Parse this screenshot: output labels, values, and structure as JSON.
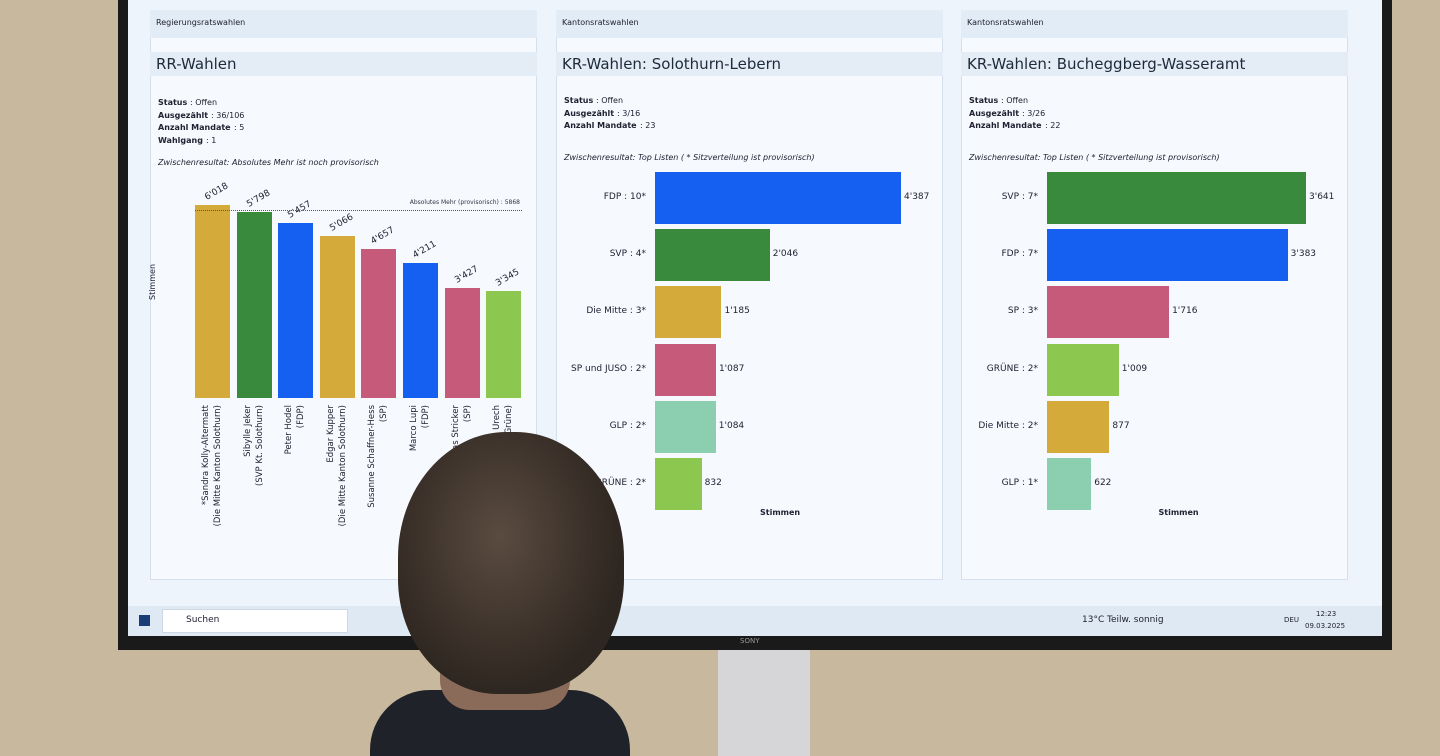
{
  "chart_data": [
    {
      "type": "bar",
      "panel": "Regierungsratswahlen",
      "title": "RR-Wahlen",
      "info": [
        {
          "label": "Status",
          "value": ": Offen"
        },
        {
          "label": "Ausgezählt",
          "value": ": 36/106"
        },
        {
          "label": "Anzahl Mandate",
          "value": ": 5"
        },
        {
          "label": "Wahlgang",
          "value": ": 1"
        }
      ],
      "subtitle": "Zwischenresultat: Absolutes Mehr ist noch provisorisch",
      "ylabel": "Stimmen",
      "categories": [
        "*Sandra Kolly-Altermatt\n(Die Mitte Kanton Solothurn)",
        "Sibylle Jeker\n(SVP Kt. Solothurn)",
        "Peter Hodel\n(FDP)",
        "Edgar Kupper\n(Die Mitte Kanton Solothurn)",
        "Susanne Schaffner-Hess\n(SP)",
        "Marco Lupi\n(FDP)",
        "Mathias Stricker\n(SP)",
        "Daniel Urech\n(Grüne)"
      ],
      "values": [
        6018,
        5798,
        5457,
        5066,
        4657,
        4211,
        3427,
        3345
      ],
      "value_labels": [
        "6'018",
        "5'798",
        "5'457",
        "5'066",
        "4'657",
        "4'211",
        "3'427",
        "3'345"
      ],
      "colors": [
        "#d4aa3a",
        "#3a8a3e",
        "#1560f0",
        "#d4aa3a",
        "#c65a7a",
        "#1560f0",
        "#c65a7a",
        "#8cc850"
      ],
      "threshold": {
        "label": "Absolutes Mehr (provisorisch) : 5868",
        "value": 5868
      }
    },
    {
      "type": "hbar",
      "panel": "Kantonsratswahlen",
      "title": "KR-Wahlen: Solothurn-Lebern",
      "info": [
        {
          "label": "Status",
          "value": ": Offen"
        },
        {
          "label": "Ausgezählt",
          "value": ": 3/16"
        },
        {
          "label": "Anzahl Mandate",
          "value": ": 23"
        }
      ],
      "subtitle": "Zwischenresultat: Top Listen ( * Sitzverteilung ist provisorisch)",
      "xlabel": "Stimmen",
      "categories": [
        "FDP : 10*",
        "SVP : 4*",
        "Die Mitte : 3*",
        "SP und JUSO : 2*",
        "GLP : 2*",
        "GRÜNE : 2*"
      ],
      "values": [
        4387,
        2046,
        1185,
        1087,
        1084,
        832
      ],
      "value_labels": [
        "4'387",
        "2'046",
        "1'185",
        "1'087",
        "1'084",
        "832"
      ],
      "colors": [
        "#1560f0",
        "#3a8a3e",
        "#d4aa3a",
        "#c65a7a",
        "#8ccfb0",
        "#8cc850"
      ]
    },
    {
      "type": "hbar",
      "panel": "Kantonsratswahlen",
      "title": "KR-Wahlen: Bucheggberg-Wasseramt",
      "info": [
        {
          "label": "Status",
          "value": ": Offen"
        },
        {
          "label": "Ausgezählt",
          "value": ": 3/26"
        },
        {
          "label": "Anzahl Mandate",
          "value": ": 22"
        }
      ],
      "subtitle": "Zwischenresultat: Top Listen ( * Sitzverteilung ist provisorisch)",
      "xlabel": "Stimmen",
      "categories": [
        "SVP : 7*",
        "FDP : 7*",
        "SP : 3*",
        "GRÜNE : 2*",
        "Die Mitte : 2*",
        "GLP : 1*"
      ],
      "values": [
        3641,
        3383,
        1716,
        1009,
        877,
        622
      ],
      "value_labels": [
        "3'641",
        "3'383",
        "1'716",
        "1'009",
        "877",
        "622"
      ],
      "colors": [
        "#3a8a3e",
        "#1560f0",
        "#c65a7a",
        "#8cc850",
        "#d4aa3a",
        "#8ccfb0"
      ]
    }
  ],
  "taskbar": {
    "search": "Suchen",
    "temperature": "13°C",
    "weather": "Teilw. sonnig",
    "language": "DEU",
    "time": "12:23",
    "date": "09.03.2025"
  },
  "monitor_brand": "SONY"
}
